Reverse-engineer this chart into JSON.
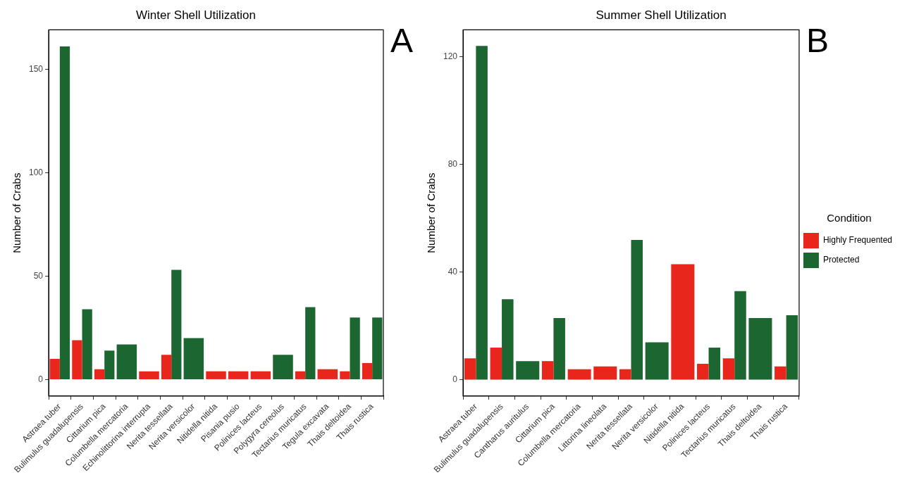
{
  "chart_data": [
    {
      "type": "bar",
      "title": "Winter Shell Utilization",
      "ylabel": "Number of Crabs",
      "categories": [
        "Astraea tuber",
        "Bulimulus guadalupensis",
        "Cittarium pica",
        "Columbella mercatoria",
        "Echinolittorina interrupta",
        "Nerita tessellata",
        "Nerita versicolor",
        "Nitidella nitida",
        "Pisania pusio",
        "Polinices lacteus",
        "Polygyra cereolus",
        "Tectarius muricatus",
        "Tegula excavata",
        "Thais deltoidea",
        "Thais rustica"
      ],
      "series": [
        {
          "color": "#e8261c",
          "values": [
            10,
            19,
            5,
            null,
            4,
            12,
            null,
            4,
            4,
            4,
            null,
            4,
            5,
            4,
            8
          ]
        },
        {
          "color": "#1b6631",
          "values": [
            161,
            34,
            14,
            17,
            null,
            53,
            20,
            null,
            null,
            null,
            12,
            35,
            null,
            30,
            30
          ]
        }
      ],
      "ylim": [
        -8,
        169
      ],
      "yticks": [
        0,
        50,
        100,
        150
      ],
      "grid": false,
      "legend": false,
      "annotations": [
        "A"
      ]
    },
    {
      "type": "bar",
      "title": "Summer Shell Utilization",
      "ylabel": "Number of Crabs",
      "legend_title": "Condition",
      "categories": [
        "Astraea tuber",
        "Bulimulus guadalupensis",
        "Cantharus auritulus",
        "Cittarium pica",
        "Columbella mercatoria",
        "Littorina lineolata",
        "Nerita tessellata",
        "Nerita versicolor",
        "Nitidella nitida",
        "Polinices lacteus",
        "Tectarius muricatus",
        "Thais deltoidea",
        "Thais rustica"
      ],
      "series": [
        {
          "name": "Highly Frequented",
          "color": "#e8261c",
          "values": [
            8,
            12,
            null,
            7,
            4,
            5,
            4,
            null,
            43,
            6,
            8,
            null,
            5
          ]
        },
        {
          "name": "Protected",
          "color": "#1b6631",
          "values": [
            124,
            30,
            7,
            23,
            null,
            null,
            52,
            14,
            null,
            12,
            33,
            23,
            24
          ]
        }
      ],
      "ylim": [
        -6,
        130
      ],
      "yticks": [
        0,
        40,
        80,
        120
      ],
      "grid": false,
      "legend": "right",
      "annotations": [
        "B"
      ]
    }
  ]
}
